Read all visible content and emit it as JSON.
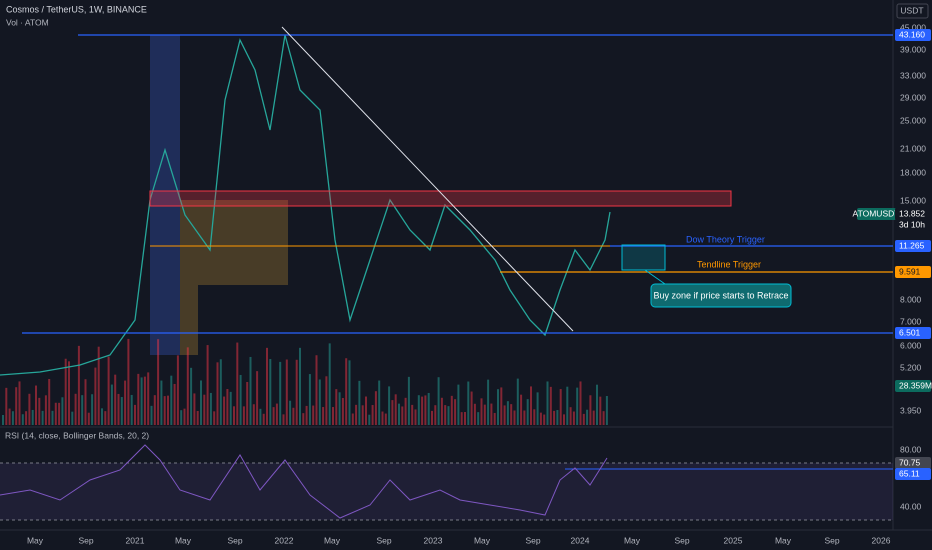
{
  "header": {
    "symbol": "Cosmos / TetherUS, 1W, BINANCE",
    "volume": "Vol · ATOM",
    "currency": "USDT"
  },
  "price_axis": {
    "labels": [
      "45.000",
      "39.000",
      "33.000",
      "29.000",
      "25.000",
      "21.000",
      "18.000",
      "15.000",
      "8.000",
      "7.000",
      "6.000",
      "5.200",
      "3.950"
    ],
    "tags": [
      "43.160",
      "13.852",
      "3d 10h",
      "11.265",
      "9.591",
      "6.501",
      "28.359M"
    ],
    "symbol_tag": "ATOMUSDT"
  },
  "annotations": {
    "dow": "Dow Theory Trigger",
    "trend": "Tendline Trigger",
    "buy_zone": "Buy zone if price starts to Retrace"
  },
  "rsi": {
    "title": "RSI (14, close, Bollinger Bands, 20, 2)",
    "labels": [
      "80.00",
      "40.00"
    ],
    "tags": [
      "70.75",
      "65.11"
    ]
  },
  "time_axis": [
    "May",
    "Sep",
    "2021",
    "May",
    "Sep",
    "2022",
    "May",
    "Sep",
    "2023",
    "May",
    "Sep",
    "2024",
    "May",
    "Sep",
    "2025",
    "May",
    "Sep",
    "2026"
  ]
}
